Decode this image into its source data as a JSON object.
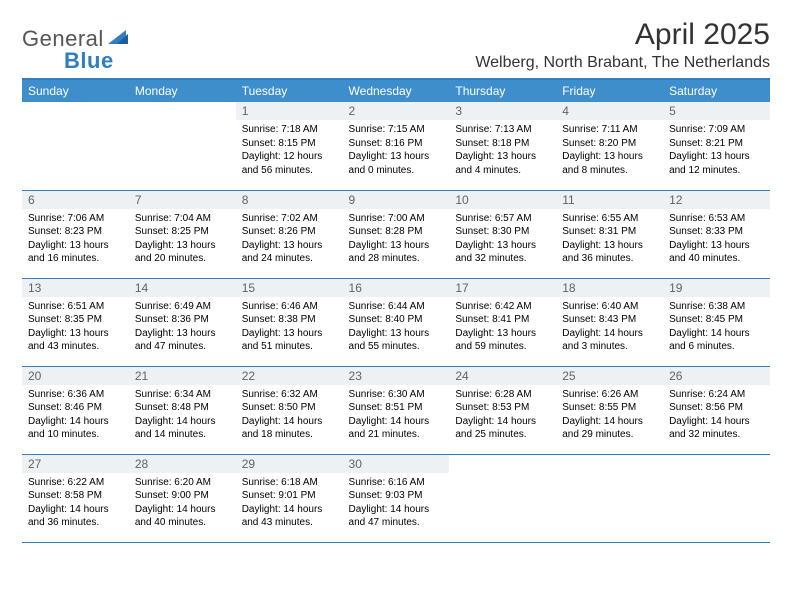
{
  "brand": {
    "part1": "General",
    "part2": "Blue"
  },
  "title": "April 2025",
  "location": "Welberg, North Brabant, The Netherlands",
  "colors": {
    "header_bg": "#3f8ecc",
    "header_text": "#ffffff",
    "rule": "#2f7fc0",
    "daynum_bg": "#eef1f3",
    "daynum_text": "#5d6468",
    "body_text": "#000000",
    "page_bg": "#ffffff"
  },
  "typography": {
    "title_fontsize": 30,
    "location_fontsize": 16,
    "weekday_fontsize": 12,
    "daynum_fontsize": 12,
    "body_fontsize": 10
  },
  "weekdays": [
    "Sunday",
    "Monday",
    "Tuesday",
    "Wednesday",
    "Thursday",
    "Friday",
    "Saturday"
  ],
  "weeks": [
    [
      {
        "empty": true
      },
      {
        "empty": true
      },
      {
        "n": "1",
        "sunrise": "7:18 AM",
        "sunset": "8:15 PM",
        "daylight": "12 hours and 56 minutes."
      },
      {
        "n": "2",
        "sunrise": "7:15 AM",
        "sunset": "8:16 PM",
        "daylight": "13 hours and 0 minutes."
      },
      {
        "n": "3",
        "sunrise": "7:13 AM",
        "sunset": "8:18 PM",
        "daylight": "13 hours and 4 minutes."
      },
      {
        "n": "4",
        "sunrise": "7:11 AM",
        "sunset": "8:20 PM",
        "daylight": "13 hours and 8 minutes."
      },
      {
        "n": "5",
        "sunrise": "7:09 AM",
        "sunset": "8:21 PM",
        "daylight": "13 hours and 12 minutes."
      }
    ],
    [
      {
        "n": "6",
        "sunrise": "7:06 AM",
        "sunset": "8:23 PM",
        "daylight": "13 hours and 16 minutes."
      },
      {
        "n": "7",
        "sunrise": "7:04 AM",
        "sunset": "8:25 PM",
        "daylight": "13 hours and 20 minutes."
      },
      {
        "n": "8",
        "sunrise": "7:02 AM",
        "sunset": "8:26 PM",
        "daylight": "13 hours and 24 minutes."
      },
      {
        "n": "9",
        "sunrise": "7:00 AM",
        "sunset": "8:28 PM",
        "daylight": "13 hours and 28 minutes."
      },
      {
        "n": "10",
        "sunrise": "6:57 AM",
        "sunset": "8:30 PM",
        "daylight": "13 hours and 32 minutes."
      },
      {
        "n": "11",
        "sunrise": "6:55 AM",
        "sunset": "8:31 PM",
        "daylight": "13 hours and 36 minutes."
      },
      {
        "n": "12",
        "sunrise": "6:53 AM",
        "sunset": "8:33 PM",
        "daylight": "13 hours and 40 minutes."
      }
    ],
    [
      {
        "n": "13",
        "sunrise": "6:51 AM",
        "sunset": "8:35 PM",
        "daylight": "13 hours and 43 minutes."
      },
      {
        "n": "14",
        "sunrise": "6:49 AM",
        "sunset": "8:36 PM",
        "daylight": "13 hours and 47 minutes."
      },
      {
        "n": "15",
        "sunrise": "6:46 AM",
        "sunset": "8:38 PM",
        "daylight": "13 hours and 51 minutes."
      },
      {
        "n": "16",
        "sunrise": "6:44 AM",
        "sunset": "8:40 PM",
        "daylight": "13 hours and 55 minutes."
      },
      {
        "n": "17",
        "sunrise": "6:42 AM",
        "sunset": "8:41 PM",
        "daylight": "13 hours and 59 minutes."
      },
      {
        "n": "18",
        "sunrise": "6:40 AM",
        "sunset": "8:43 PM",
        "daylight": "14 hours and 3 minutes."
      },
      {
        "n": "19",
        "sunrise": "6:38 AM",
        "sunset": "8:45 PM",
        "daylight": "14 hours and 6 minutes."
      }
    ],
    [
      {
        "n": "20",
        "sunrise": "6:36 AM",
        "sunset": "8:46 PM",
        "daylight": "14 hours and 10 minutes."
      },
      {
        "n": "21",
        "sunrise": "6:34 AM",
        "sunset": "8:48 PM",
        "daylight": "14 hours and 14 minutes."
      },
      {
        "n": "22",
        "sunrise": "6:32 AM",
        "sunset": "8:50 PM",
        "daylight": "14 hours and 18 minutes."
      },
      {
        "n": "23",
        "sunrise": "6:30 AM",
        "sunset": "8:51 PM",
        "daylight": "14 hours and 21 minutes."
      },
      {
        "n": "24",
        "sunrise": "6:28 AM",
        "sunset": "8:53 PM",
        "daylight": "14 hours and 25 minutes."
      },
      {
        "n": "25",
        "sunrise": "6:26 AM",
        "sunset": "8:55 PM",
        "daylight": "14 hours and 29 minutes."
      },
      {
        "n": "26",
        "sunrise": "6:24 AM",
        "sunset": "8:56 PM",
        "daylight": "14 hours and 32 minutes."
      }
    ],
    [
      {
        "n": "27",
        "sunrise": "6:22 AM",
        "sunset": "8:58 PM",
        "daylight": "14 hours and 36 minutes."
      },
      {
        "n": "28",
        "sunrise": "6:20 AM",
        "sunset": "9:00 PM",
        "daylight": "14 hours and 40 minutes."
      },
      {
        "n": "29",
        "sunrise": "6:18 AM",
        "sunset": "9:01 PM",
        "daylight": "14 hours and 43 minutes."
      },
      {
        "n": "30",
        "sunrise": "6:16 AM",
        "sunset": "9:03 PM",
        "daylight": "14 hours and 47 minutes."
      },
      {
        "empty": true
      },
      {
        "empty": true
      },
      {
        "empty": true
      }
    ]
  ],
  "labels": {
    "sunrise": "Sunrise: ",
    "sunset": "Sunset: ",
    "daylight": "Daylight: "
  }
}
